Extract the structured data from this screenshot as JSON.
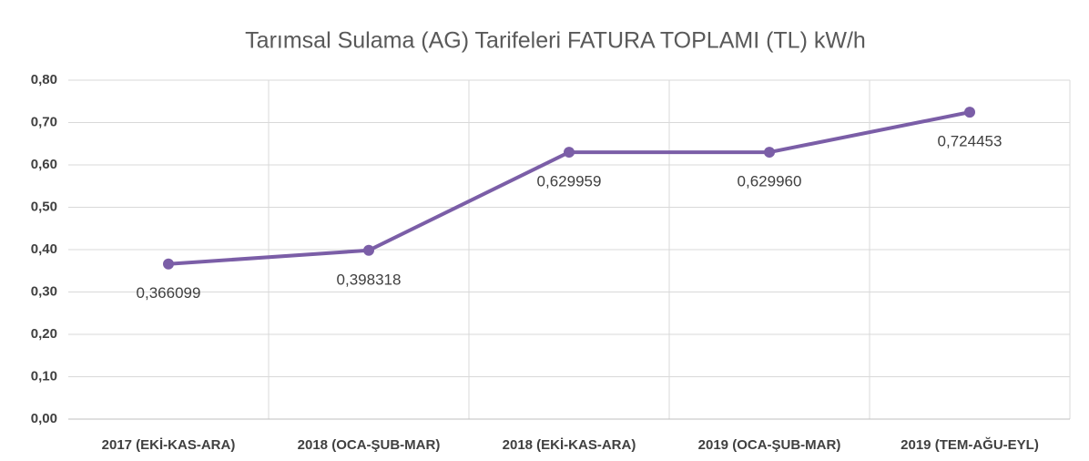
{
  "chart_data": {
    "type": "line",
    "title": "Tarımsal Sulama (AG) Tarifeleri FATURA TOPLAMI (TL) kW/h",
    "categories": [
      "2017 (EKİ-KAS-ARA)",
      "2018 (OCA-ŞUB-MAR)",
      "2018  (EKİ-KAS-ARA)",
      "2019 (OCA-ŞUB-MAR)",
      "2019 (TEM-AĞU-EYL)"
    ],
    "series": [
      {
        "name": "FATURA TOPLAMI",
        "color": "#7b5ea7",
        "values": [
          0.366099,
          0.398318,
          0.629959,
          0.62996,
          0.724453
        ],
        "value_labels": [
          "0,366099",
          "0,398318",
          "0,629959",
          "0,629960",
          "0,724453"
        ]
      }
    ],
    "ylim": [
      0,
      0.8
    ],
    "yticks": [
      {
        "value": 0,
        "label": "0,00"
      },
      {
        "value": 0.1,
        "label": "0,10"
      },
      {
        "value": 0.2,
        "label": "0,20"
      },
      {
        "value": 0.3,
        "label": "0,30"
      },
      {
        "value": 0.4,
        "label": "0,40"
      },
      {
        "value": 0.5,
        "label": "0,50"
      },
      {
        "value": 0.6,
        "label": "0,60"
      },
      {
        "value": 0.7,
        "label": "0,70"
      },
      {
        "value": 0.8,
        "label": "0,80"
      }
    ],
    "grid": true
  }
}
